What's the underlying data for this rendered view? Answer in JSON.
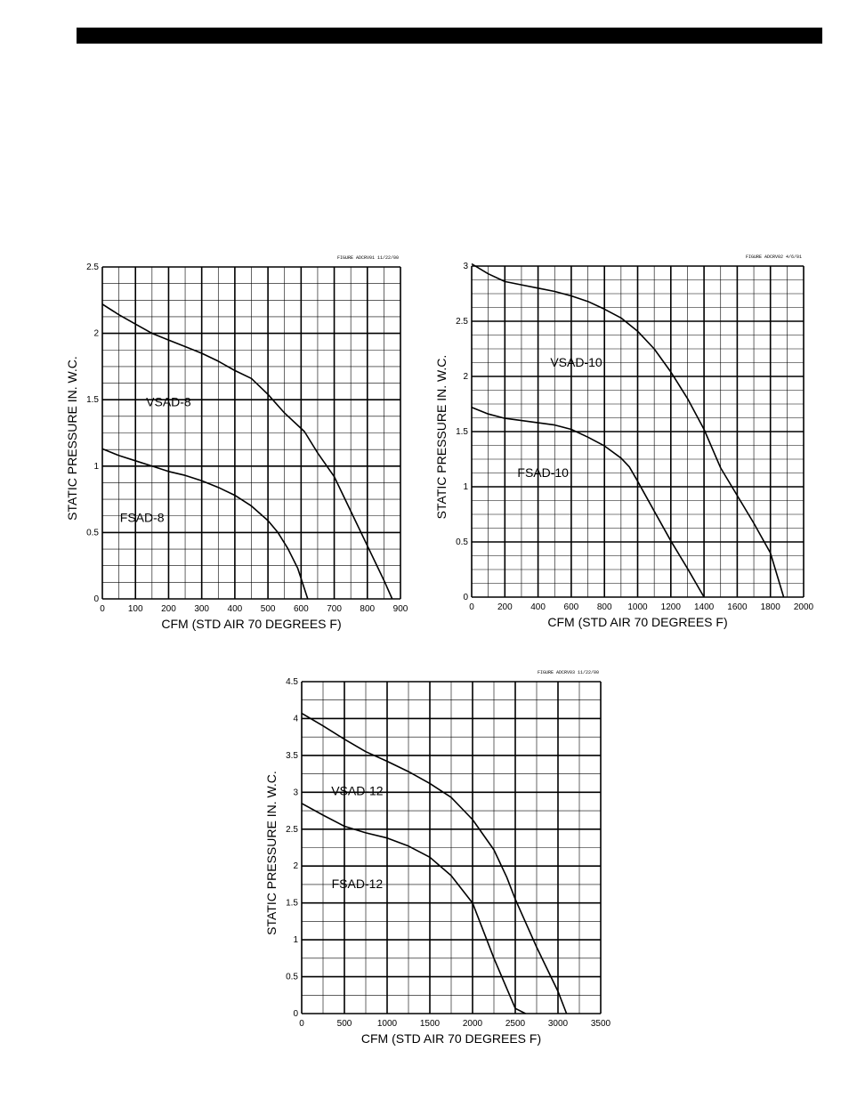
{
  "chart_data": [
    {
      "type": "line",
      "figure_note": "FIGURE ADCRV01  11/22/00",
      "xlabel": "CFM (STD AIR 70 DEGREES F)",
      "ylabel": "STATIC PRESSURE IN. W.C.",
      "xlim": [
        0,
        900
      ],
      "ylim": [
        0,
        2.5
      ],
      "x_ticks": [
        0,
        100,
        200,
        300,
        400,
        500,
        600,
        700,
        800,
        900
      ],
      "y_ticks": [
        0,
        0.5,
        1,
        1.5,
        2,
        2.5
      ],
      "x_minor": 50,
      "y_minor": 0.125,
      "grid": true,
      "series": [
        {
          "name": "VSAD-8",
          "points": [
            [
              0,
              2.22
            ],
            [
              50,
              2.14
            ],
            [
              100,
              2.07
            ],
            [
              150,
              2.0
            ],
            [
              200,
              1.95
            ],
            [
              250,
              1.9
            ],
            [
              300,
              1.85
            ],
            [
              350,
              1.79
            ],
            [
              400,
              1.72
            ],
            [
              450,
              1.66
            ],
            [
              500,
              1.54
            ],
            [
              550,
              1.4
            ],
            [
              610,
              1.26
            ],
            [
              650,
              1.1
            ],
            [
              700,
              0.92
            ],
            [
              750,
              0.66
            ],
            [
              800,
              0.4
            ],
            [
              850,
              0.14
            ],
            [
              875,
              0
            ]
          ],
          "label_at": [
            200,
            1.45
          ]
        },
        {
          "name": "FSAD-8",
          "points": [
            [
              0,
              1.13
            ],
            [
              50,
              1.08
            ],
            [
              100,
              1.04
            ],
            [
              150,
              1.0
            ],
            [
              200,
              0.96
            ],
            [
              250,
              0.93
            ],
            [
              300,
              0.89
            ],
            [
              350,
              0.84
            ],
            [
              400,
              0.78
            ],
            [
              450,
              0.7
            ],
            [
              500,
              0.59
            ],
            [
              530,
              0.5
            ],
            [
              560,
              0.38
            ],
            [
              590,
              0.23
            ],
            [
              620,
              0
            ]
          ],
          "label_at": [
            120,
            0.58
          ]
        }
      ]
    },
    {
      "type": "line",
      "figure_note": "FIGURE ADCRV02  4/6/01",
      "xlabel": "CFM (STD AIR 70 DEGREES F)",
      "ylabel": "STATIC PRESSURE IN. W.C.",
      "xlim": [
        0,
        2000
      ],
      "ylim": [
        0,
        3
      ],
      "x_ticks": [
        0,
        200,
        400,
        600,
        800,
        1000,
        1200,
        1400,
        1600,
        1800,
        2000
      ],
      "y_ticks": [
        0,
        0.5,
        1,
        1.5,
        2,
        2.5,
        3
      ],
      "x_minor": 100,
      "y_minor": 0.125,
      "grid": true,
      "series": [
        {
          "name": "VSAD-10",
          "points": [
            [
              0,
              3.02
            ],
            [
              100,
              2.93
            ],
            [
              200,
              2.86
            ],
            [
              300,
              2.83
            ],
            [
              400,
              2.8
            ],
            [
              500,
              2.77
            ],
            [
              600,
              2.73
            ],
            [
              700,
              2.68
            ],
            [
              800,
              2.61
            ],
            [
              900,
              2.53
            ],
            [
              1000,
              2.41
            ],
            [
              1100,
              2.25
            ],
            [
              1200,
              2.04
            ],
            [
              1300,
              1.8
            ],
            [
              1400,
              1.52
            ],
            [
              1500,
              1.17
            ],
            [
              1600,
              0.92
            ],
            [
              1700,
              0.67
            ],
            [
              1800,
              0.4
            ],
            [
              1880,
              0
            ]
          ],
          "label_at": [
            630,
            2.09
          ]
        },
        {
          "name": "FSAD-10",
          "points": [
            [
              0,
              1.72
            ],
            [
              100,
              1.66
            ],
            [
              200,
              1.62
            ],
            [
              300,
              1.6
            ],
            [
              400,
              1.58
            ],
            [
              500,
              1.56
            ],
            [
              600,
              1.52
            ],
            [
              700,
              1.45
            ],
            [
              800,
              1.37
            ],
            [
              900,
              1.26
            ],
            [
              950,
              1.18
            ],
            [
              1000,
              1.05
            ],
            [
              1100,
              0.78
            ],
            [
              1200,
              0.51
            ],
            [
              1300,
              0.26
            ],
            [
              1400,
              0
            ]
          ],
          "label_at": [
            430,
            1.09
          ]
        }
      ]
    },
    {
      "type": "line",
      "figure_note": "FIGURE ADCRV03  11/22/00",
      "xlabel": "CFM (STD AIR 70 DEGREES F)",
      "ylabel": "STATIC PRESSURE IN. W.C.",
      "xlim": [
        0,
        3500
      ],
      "ylim": [
        0,
        4.5
      ],
      "x_ticks": [
        0,
        500,
        1000,
        1500,
        2000,
        2500,
        3000,
        3500
      ],
      "y_ticks": [
        0,
        0.5,
        1,
        1.5,
        2,
        2.5,
        3,
        3.5,
        4,
        4.5
      ],
      "x_minor": 250,
      "y_minor": 0.25,
      "grid": true,
      "series": [
        {
          "name": "VSAD-12",
          "points": [
            [
              0,
              4.07
            ],
            [
              250,
              3.9
            ],
            [
              500,
              3.72
            ],
            [
              750,
              3.55
            ],
            [
              1000,
              3.42
            ],
            [
              1250,
              3.28
            ],
            [
              1500,
              3.12
            ],
            [
              1750,
              2.93
            ],
            [
              2000,
              2.63
            ],
            [
              2250,
              2.22
            ],
            [
              2400,
              1.85
            ],
            [
              2500,
              1.55
            ],
            [
              2750,
              0.9
            ],
            [
              3000,
              0.3
            ],
            [
              3100,
              0
            ]
          ],
          "label_at": [
            650,
            2.96
          ]
        },
        {
          "name": "FSAD-12",
          "points": [
            [
              0,
              2.85
            ],
            [
              250,
              2.69
            ],
            [
              500,
              2.54
            ],
            [
              750,
              2.45
            ],
            [
              1000,
              2.38
            ],
            [
              1250,
              2.27
            ],
            [
              1500,
              2.12
            ],
            [
              1750,
              1.87
            ],
            [
              2000,
              1.5
            ],
            [
              2250,
              0.75
            ],
            [
              2500,
              0.07
            ],
            [
              2620,
              0
            ]
          ],
          "label_at": [
            650,
            1.7
          ]
        }
      ]
    }
  ]
}
